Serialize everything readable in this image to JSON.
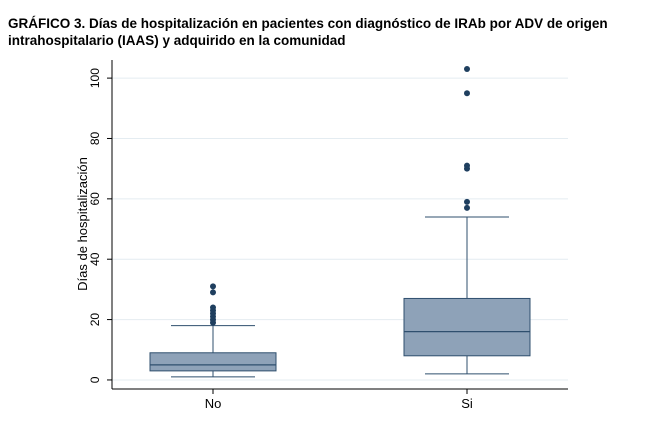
{
  "figure": {
    "title_line1": "GRÁFICO 3. Días de hospitalización en pacientes con diagnóstico de IRAb por ADV de origen",
    "title_line2": "intrahospitalario (IAAS) y adquirido en la comunidad"
  },
  "chart_data": {
    "type": "box",
    "title": "GRÁFICO 3. Días de hospitalización en pacientes con diagnóstico de IRAb por ADV de origen intrahospitalario (IAAS) y adquirido en la comunidad",
    "xlabel": "",
    "ylabel": "Días de hospitalización",
    "ylim": [
      -3,
      106
    ],
    "yticks": [
      0,
      20,
      40,
      60,
      80,
      100
    ],
    "grid": true,
    "legend": "none",
    "box_color": "#8ea2b8",
    "edge_color": "#2f4f6e",
    "outlier_color": "#1f3f5f",
    "categories": [
      "No",
      "Si"
    ],
    "boxes": [
      {
        "category": "No",
        "whisker_low": 1,
        "q1": 3,
        "median": 5,
        "q3": 9,
        "whisker_high": 18,
        "outliers": [
          19,
          20,
          21,
          22,
          23,
          24,
          29,
          31
        ]
      },
      {
        "category": "Si",
        "whisker_low": 2,
        "q1": 8,
        "median": 16,
        "q3": 27,
        "whisker_high": 54,
        "outliers": [
          57,
          59,
          70,
          71,
          95,
          103
        ]
      }
    ]
  }
}
